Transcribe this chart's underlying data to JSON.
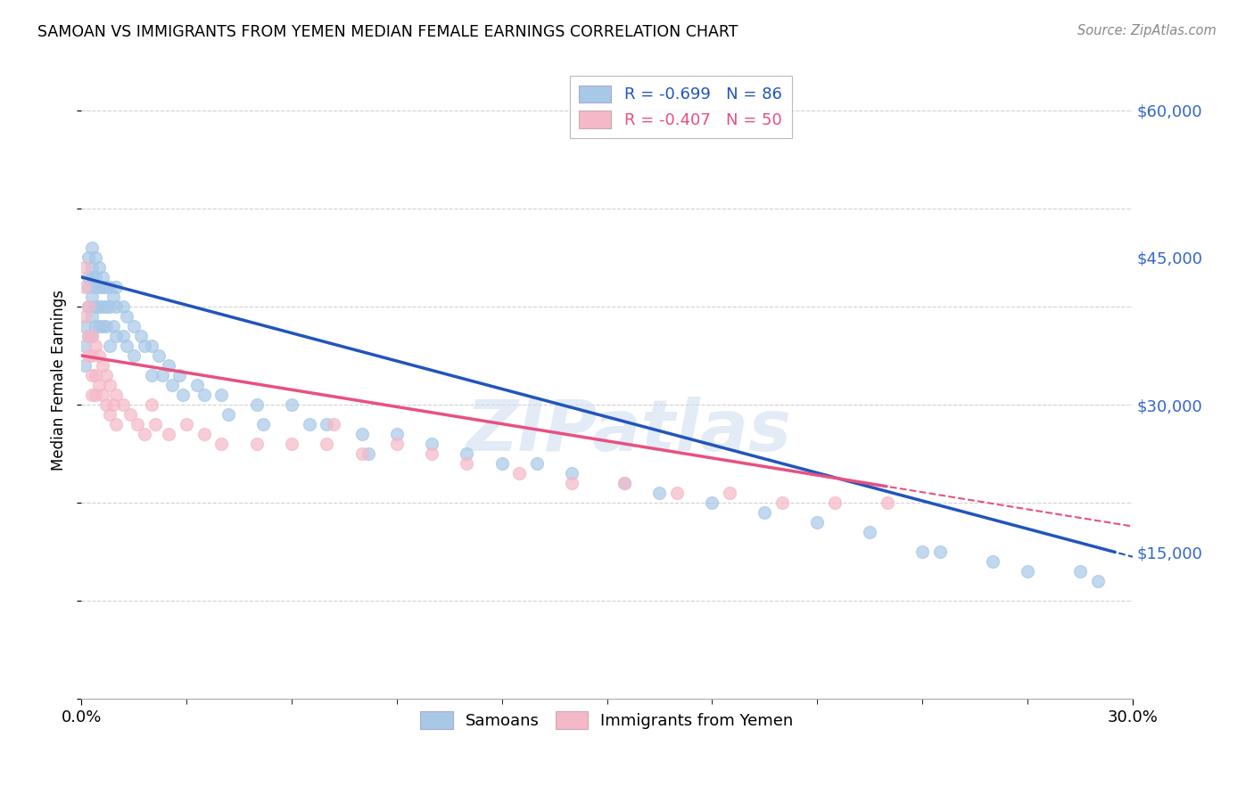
{
  "title": "SAMOAN VS IMMIGRANTS FROM YEMEN MEDIAN FEMALE EARNINGS CORRELATION CHART",
  "source": "Source: ZipAtlas.com",
  "ylabel": "Median Female Earnings",
  "ytick_labels": [
    "$15,000",
    "$30,000",
    "$45,000",
    "$60,000"
  ],
  "ytick_values": [
    15000,
    30000,
    45000,
    60000
  ],
  "ylim": [
    0,
    65000
  ],
  "xlim": [
    0.0,
    0.3
  ],
  "blue_color": "#a8c8e8",
  "pink_color": "#f5b8c8",
  "blue_line_color": "#2255bb",
  "pink_line_color": "#e85080",
  "watermark": "ZIPatlas",
  "blue_intercept": 43000,
  "blue_slope": -95000,
  "pink_intercept": 35000,
  "pink_slope": -58000,
  "samoans_x": [
    0.001,
    0.001,
    0.001,
    0.002,
    0.002,
    0.002,
    0.002,
    0.002,
    0.003,
    0.003,
    0.003,
    0.003,
    0.003,
    0.003,
    0.004,
    0.004,
    0.004,
    0.004,
    0.004,
    0.005,
    0.005,
    0.005,
    0.005,
    0.006,
    0.006,
    0.006,
    0.006,
    0.007,
    0.007,
    0.007,
    0.008,
    0.008,
    0.008,
    0.009,
    0.009,
    0.01,
    0.01,
    0.01,
    0.012,
    0.012,
    0.013,
    0.013,
    0.015,
    0.015,
    0.017,
    0.018,
    0.02,
    0.02,
    0.022,
    0.023,
    0.025,
    0.026,
    0.028,
    0.029,
    0.033,
    0.035,
    0.04,
    0.042,
    0.05,
    0.052,
    0.06,
    0.065,
    0.07,
    0.08,
    0.082,
    0.09,
    0.1,
    0.11,
    0.12,
    0.13,
    0.14,
    0.155,
    0.165,
    0.18,
    0.195,
    0.21,
    0.225,
    0.24,
    0.245,
    0.26,
    0.27,
    0.285,
    0.29
  ],
  "samoans_y": [
    38000,
    36000,
    34000,
    45000,
    43000,
    42000,
    40000,
    37000,
    46000,
    44000,
    43000,
    41000,
    39000,
    37000,
    45000,
    43000,
    42000,
    40000,
    38000,
    44000,
    42000,
    40000,
    38000,
    43000,
    42000,
    40000,
    38000,
    42000,
    40000,
    38000,
    42000,
    40000,
    36000,
    41000,
    38000,
    42000,
    40000,
    37000,
    40000,
    37000,
    39000,
    36000,
    38000,
    35000,
    37000,
    36000,
    36000,
    33000,
    35000,
    33000,
    34000,
    32000,
    33000,
    31000,
    32000,
    31000,
    31000,
    29000,
    30000,
    28000,
    30000,
    28000,
    28000,
    27000,
    25000,
    27000,
    26000,
    25000,
    24000,
    24000,
    23000,
    22000,
    21000,
    20000,
    19000,
    18000,
    17000,
    15000,
    15000,
    14000,
    13000,
    13000,
    12000
  ],
  "yemen_x": [
    0.001,
    0.001,
    0.001,
    0.002,
    0.002,
    0.002,
    0.003,
    0.003,
    0.003,
    0.003,
    0.004,
    0.004,
    0.004,
    0.005,
    0.005,
    0.006,
    0.006,
    0.007,
    0.007,
    0.008,
    0.008,
    0.009,
    0.01,
    0.01,
    0.012,
    0.014,
    0.016,
    0.018,
    0.02,
    0.021,
    0.025,
    0.03,
    0.035,
    0.04,
    0.05,
    0.06,
    0.07,
    0.072,
    0.08,
    0.09,
    0.1,
    0.11,
    0.125,
    0.14,
    0.155,
    0.17,
    0.185,
    0.2,
    0.215,
    0.23
  ],
  "yemen_y": [
    44000,
    42000,
    39000,
    40000,
    37000,
    35000,
    37000,
    35000,
    33000,
    31000,
    36000,
    33000,
    31000,
    35000,
    32000,
    34000,
    31000,
    33000,
    30000,
    32000,
    29000,
    30000,
    31000,
    28000,
    30000,
    29000,
    28000,
    27000,
    30000,
    28000,
    27000,
    28000,
    27000,
    26000,
    26000,
    26000,
    26000,
    28000,
    25000,
    26000,
    25000,
    24000,
    23000,
    22000,
    22000,
    21000,
    21000,
    20000,
    20000,
    20000
  ]
}
